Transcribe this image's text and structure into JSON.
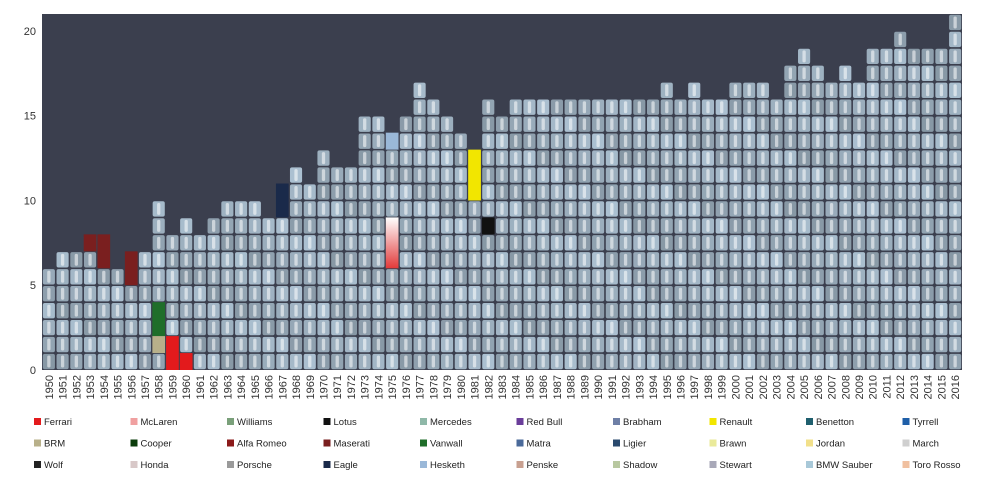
{
  "chart_data": {
    "type": "bar",
    "stacked": true,
    "title": "",
    "xlabel": "",
    "ylabel": "",
    "ylim": [
      0,
      21
    ],
    "yticks": [
      0,
      5,
      10,
      15,
      20
    ],
    "grid": false,
    "legend_position": "bottom",
    "plot_background": "#3b3f4e",
    "categories": [
      "1950",
      "1951",
      "1952",
      "1953",
      "1954",
      "1955",
      "1956",
      "1957",
      "1958",
      "1959",
      "1960",
      "1961",
      "1962",
      "1963",
      "1964",
      "1965",
      "1966",
      "1967",
      "1968",
      "1969",
      "1970",
      "1971",
      "1972",
      "1973",
      "1974",
      "1975",
      "1976",
      "1977",
      "1978",
      "1979",
      "1980",
      "1981",
      "1982",
      "1983",
      "1984",
      "1985",
      "1986",
      "1987",
      "1988",
      "1989",
      "1990",
      "1991",
      "1992",
      "1993",
      "1994",
      "1995",
      "1996",
      "1997",
      "1998",
      "1999",
      "2000",
      "2001",
      "2002",
      "2003",
      "2004",
      "2005",
      "2006",
      "2007",
      "2008",
      "2009",
      "2010",
      "2011",
      "2012",
      "2013",
      "2014",
      "2015",
      "2016"
    ],
    "totals": [
      6,
      7,
      7,
      8,
      8,
      6,
      7,
      7,
      10,
      8,
      9,
      8,
      9,
      10,
      10,
      10,
      9,
      11,
      12,
      11,
      13,
      12,
      12,
      15,
      15,
      14,
      15,
      17,
      16,
      15,
      14,
      13,
      16,
      15,
      16,
      16,
      16,
      16,
      16,
      16,
      16,
      16,
      16,
      16,
      16,
      17,
      16,
      17,
      16,
      16,
      17,
      17,
      17,
      16,
      18,
      19,
      18,
      17,
      18,
      17,
      19,
      19,
      20,
      19,
      19,
      19,
      21
    ],
    "highlights": [
      {
        "category": "1953",
        "series": "Maserati",
        "from": 7,
        "to": 8
      },
      {
        "category": "1954",
        "series": "Maserati",
        "from": 6,
        "to": 8
      },
      {
        "category": "1956",
        "series": "Maserati",
        "from": 5,
        "to": 7
      },
      {
        "category": "1958",
        "series": "Vanwall",
        "from": 2,
        "to": 4
      },
      {
        "category": "1958",
        "series": "BRM",
        "from": 1,
        "to": 2
      },
      {
        "category": "1959",
        "series": "Ferrari",
        "from": 0,
        "to": 2
      },
      {
        "category": "1960",
        "series": "Ferrari",
        "from": 0,
        "to": 1
      },
      {
        "category": "1967",
        "series": "Eagle",
        "from": 9,
        "to": 11
      },
      {
        "category": "1975",
        "series": "Hesketh",
        "from": 13,
        "to": 14
      },
      {
        "category": "1975",
        "series": "McLaren",
        "from": 6,
        "to": 9
      },
      {
        "category": "1981",
        "series": "Renault",
        "from": 10,
        "to": 13
      },
      {
        "category": "1982",
        "series": "Lotus",
        "from": 8,
        "to": 9
      }
    ],
    "legend": [
      {
        "name": "Ferrari",
        "color": "#e31a1c"
      },
      {
        "name": "McLaren",
        "color": "#f0a0a0"
      },
      {
        "name": "Williams",
        "color": "#7aa07a"
      },
      {
        "name": "Lotus",
        "color": "#111111"
      },
      {
        "name": "Mercedes",
        "color": "#8fb8a8"
      },
      {
        "name": "Red Bull",
        "color": "#6a3d9a"
      },
      {
        "name": "Brabham",
        "color": "#6e7fa6"
      },
      {
        "name": "Renault",
        "color": "#f2e600"
      },
      {
        "name": "Benetton",
        "color": "#1f5f6e"
      },
      {
        "name": "Tyrrell",
        "color": "#1f5fa8"
      },
      {
        "name": "BRM",
        "color": "#b8b08a"
      },
      {
        "name": "Cooper",
        "color": "#0b3d0b"
      },
      {
        "name": "Alfa Romeo",
        "color": "#8b1a1a"
      },
      {
        "name": "Maserati",
        "color": "#7a1f1f"
      },
      {
        "name": "Vanwall",
        "color": "#1f6e2a"
      },
      {
        "name": "Matra",
        "color": "#4a6a9a"
      },
      {
        "name": "Ligier",
        "color": "#2a4a6e"
      },
      {
        "name": "Brawn",
        "color": "#eaea9a"
      },
      {
        "name": "Jordan",
        "color": "#f2e08a"
      },
      {
        "name": "March",
        "color": "#cfcfcf"
      },
      {
        "name": "Wolf",
        "color": "#222222"
      },
      {
        "name": "Honda",
        "color": "#d8c8c8"
      },
      {
        "name": "Porsche",
        "color": "#9a9a9a"
      },
      {
        "name": "Eagle",
        "color": "#1a2a4a"
      },
      {
        "name": "Hesketh",
        "color": "#9ab8d8"
      },
      {
        "name": "Penske",
        "color": "#c8a090"
      },
      {
        "name": "Shadow",
        "color": "#b8c8a0"
      },
      {
        "name": "Stewart",
        "color": "#a8a8b8"
      },
      {
        "name": "BMW Sauber",
        "color": "#a8c8d8"
      },
      {
        "name": "Toro Rosso",
        "color": "#f0c0a0"
      }
    ]
  }
}
